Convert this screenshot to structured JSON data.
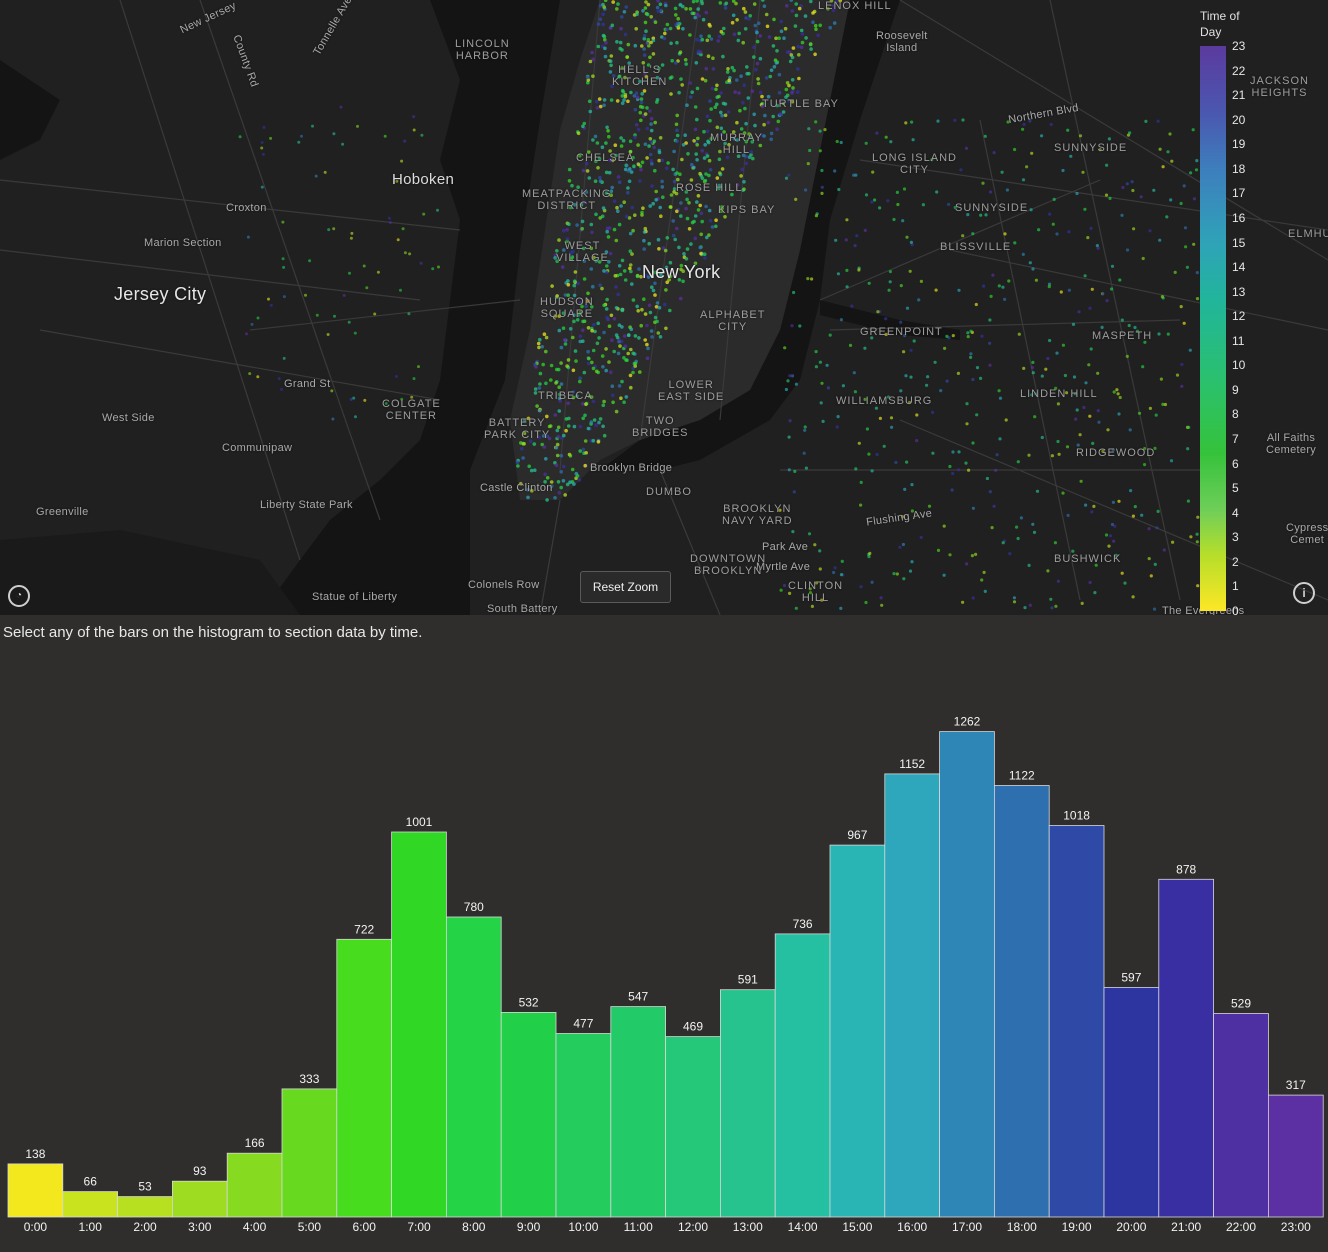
{
  "map": {
    "reset_zoom_label": "Reset Zoom",
    "labels": [
      {
        "id": "new-jersey",
        "text": "New Jersey"
      },
      {
        "id": "county-rd",
        "text": "County Rd"
      },
      {
        "id": "tonnelle-ave",
        "text": "Tonnelle Ave"
      },
      {
        "id": "lincoln-harbor",
        "text": "LINCOLN\nHARBOR"
      },
      {
        "id": "hells-kitchen",
        "text": "HELL'S\nKITCHEN"
      },
      {
        "id": "roosevelt-island",
        "text": "Roosevelt\nIsland"
      },
      {
        "id": "jackson-heights",
        "text": "JACKSON\nHEIGHTS"
      },
      {
        "id": "northern-blvd",
        "text": "Northern Blvd"
      },
      {
        "id": "hoboken",
        "text": "Hoboken"
      },
      {
        "id": "chelsea",
        "text": "CHELSEA"
      },
      {
        "id": "long-island-city",
        "text": "LONG ISLAND\nCITY"
      },
      {
        "id": "sunnyside",
        "text": "SUNNYSIDE"
      },
      {
        "id": "croxton",
        "text": "Croxton"
      },
      {
        "id": "meatpacking",
        "text": "MEATPACKING\nDISTRICT"
      },
      {
        "id": "kips-bay",
        "text": "KIPS BAY"
      },
      {
        "id": "sunnyside2",
        "text": "SUNNYSIDE"
      },
      {
        "id": "marion-section",
        "text": "Marion Section"
      },
      {
        "id": "blissville",
        "text": "BLISSVILLE"
      },
      {
        "id": "jersey-city",
        "text": "Jersey City"
      },
      {
        "id": "new-york",
        "text": "New York"
      },
      {
        "id": "hudson-square",
        "text": "HUDSON\nSQUARE"
      },
      {
        "id": "alphabet-city",
        "text": "ALPHABET\nCITY"
      },
      {
        "id": "greenpoint",
        "text": "GREENPOINT"
      },
      {
        "id": "maspeth",
        "text": "MASPETH"
      },
      {
        "id": "grand-st",
        "text": "Grand St"
      },
      {
        "id": "lower-east-side",
        "text": "LOWER\nEAST SIDE"
      },
      {
        "id": "colgate-center",
        "text": "COLGATE\nCENTER"
      },
      {
        "id": "west-side",
        "text": "West Side"
      },
      {
        "id": "williamsburg",
        "text": "WILLIAMSBURG"
      },
      {
        "id": "linden-hill",
        "text": "LINDEN HILL"
      },
      {
        "id": "battery-park-city",
        "text": "BATTERY\nPARK CITY"
      },
      {
        "id": "two-bridges",
        "text": "TWO\nBRIDGES"
      },
      {
        "id": "communipaw",
        "text": "Communipaw"
      },
      {
        "id": "all-faiths",
        "text": "All Faiths\nCemetery"
      },
      {
        "id": "ridgewood",
        "text": "RIDGEWOOD"
      },
      {
        "id": "brooklyn-bridge",
        "text": "Brooklyn Bridge"
      },
      {
        "id": "castle-clinton",
        "text": "Castle Clinton"
      },
      {
        "id": "dumbo",
        "text": "DUMBO"
      },
      {
        "id": "liberty-state-park",
        "text": "Liberty State Park"
      },
      {
        "id": "greenville",
        "text": "Greenville"
      },
      {
        "id": "brooklyn-navy-yard",
        "text": "BROOKLYN\nNAVY YARD"
      },
      {
        "id": "flushing-ave",
        "text": "Flushing Ave"
      },
      {
        "id": "park-ave",
        "text": "Park Ave"
      },
      {
        "id": "myrtle-ave",
        "text": "Myrtle Ave"
      },
      {
        "id": "downtown-brooklyn",
        "text": "DOWNTOWN\nBROOKLYN"
      },
      {
        "id": "bushwick",
        "text": "BUSHWICK"
      },
      {
        "id": "cypress",
        "text": "Cypress\nCemet"
      },
      {
        "id": "clinton-hill",
        "text": "CLINTON\nHILL"
      },
      {
        "id": "colonels-row",
        "text": "Colonels Row"
      },
      {
        "id": "statue-of-liberty",
        "text": "Statue of Liberty"
      },
      {
        "id": "south-battery",
        "text": "South Battery"
      },
      {
        "id": "evergreens",
        "text": "The Evergreens"
      },
      {
        "id": "lenox-hill",
        "text": "LENOX HILL"
      },
      {
        "id": "murray-hill",
        "text": "MURRAY\nHILL"
      },
      {
        "id": "rose-hill",
        "text": "ROSE HILL"
      },
      {
        "id": "turtle-bay",
        "text": "TURTLE BAY"
      },
      {
        "id": "west-village",
        "text": "WEST\nVILLAGE"
      },
      {
        "id": "tribeca",
        "text": "TRIBECA"
      },
      {
        "id": "elmhurst",
        "text": "ELMHU"
      }
    ]
  },
  "legend": {
    "title": "Time of Day",
    "ticks": [
      "0",
      "1",
      "2",
      "3",
      "4",
      "5",
      "6",
      "7",
      "8",
      "9",
      "10",
      "11",
      "12",
      "13",
      "14",
      "15",
      "16",
      "17",
      "18",
      "19",
      "20",
      "21",
      "22",
      "23"
    ]
  },
  "instruction": "Select any of the bars on the histogram to section data by time.",
  "chart_data": {
    "type": "bar",
    "categories": [
      "0:00",
      "1:00",
      "2:00",
      "3:00",
      "4:00",
      "5:00",
      "6:00",
      "7:00",
      "8:00",
      "9:00",
      "10:00",
      "11:00",
      "12:00",
      "13:00",
      "14:00",
      "15:00",
      "16:00",
      "17:00",
      "18:00",
      "19:00",
      "20:00",
      "21:00",
      "22:00",
      "23:00"
    ],
    "values": [
      138,
      66,
      53,
      93,
      166,
      333,
      722,
      1001,
      780,
      532,
      477,
      547,
      469,
      591,
      736,
      967,
      1152,
      1262,
      1122,
      1018,
      597,
      878,
      529,
      317
    ],
    "colors": [
      "#f2e81d",
      "#cae31f",
      "#b7e021",
      "#9ddc21",
      "#86da1f",
      "#67d91f",
      "#48dc1f",
      "#30d724",
      "#24d446",
      "#22cf49",
      "#24cc5e",
      "#23cb68",
      "#25c879",
      "#26c38f",
      "#25bfa2",
      "#28b5b4",
      "#2ea6bc",
      "#2e86b6",
      "#2e6fb0",
      "#2f4aa6",
      "#2d35a0",
      "#3a2ea3",
      "#4e30a3",
      "#5c2fa3"
    ],
    "ylim": [
      0,
      1300
    ]
  }
}
